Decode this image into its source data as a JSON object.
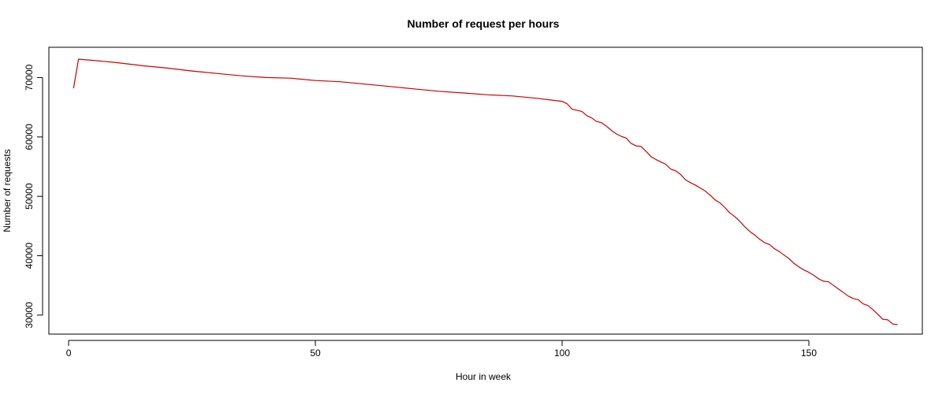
{
  "chart_data": {
    "type": "line",
    "title": "Number of request per hours",
    "xlabel": "Hour in week",
    "ylabel": "Number of requests",
    "xlim": [
      -4,
      173
    ],
    "ylim": [
      26800,
      75100
    ],
    "x_ticks": [
      0,
      50,
      100,
      150
    ],
    "y_ticks": [
      30000,
      40000,
      50000,
      60000,
      70000
    ],
    "grid": false,
    "legend": "none",
    "series": [
      {
        "color": "#cc0000",
        "x": [
          1,
          2,
          5,
          10,
          15,
          20,
          25,
          30,
          35,
          40,
          45,
          50,
          55,
          60,
          65,
          70,
          75,
          80,
          85,
          90,
          95,
          98,
          100,
          101,
          102,
          103,
          104,
          105,
          106,
          107,
          108,
          109,
          110,
          111,
          112,
          113,
          114,
          115,
          116,
          117,
          118,
          119,
          120,
          121,
          122,
          123,
          124,
          125,
          126,
          127,
          128,
          129,
          130,
          131,
          132,
          133,
          134,
          135,
          136,
          137,
          138,
          139,
          140,
          141,
          142,
          143,
          144,
          145,
          146,
          147,
          148,
          149,
          150,
          151,
          152,
          153,
          154,
          155,
          156,
          157,
          158,
          159,
          160,
          161,
          162,
          163,
          164,
          165,
          166,
          167,
          168
        ],
        "y": [
          68200,
          73100,
          72900,
          72500,
          72000,
          71600,
          71100,
          70700,
          70300,
          70000,
          69900,
          69500,
          69300,
          68900,
          68500,
          68100,
          67700,
          67400,
          67100,
          66900,
          66500,
          66200,
          66000,
          65600,
          64700,
          64500,
          64300,
          63600,
          63200,
          62600,
          62400,
          61800,
          61100,
          60500,
          60100,
          59800,
          58900,
          58500,
          58400,
          57600,
          56700,
          56200,
          55800,
          55400,
          54600,
          54300,
          53700,
          52800,
          52300,
          51900,
          51400,
          50900,
          50200,
          49400,
          48900,
          48100,
          47200,
          46600,
          45800,
          44900,
          44100,
          43500,
          42800,
          42200,
          41900,
          41200,
          40700,
          40100,
          39500,
          38700,
          38100,
          37600,
          37200,
          36700,
          36100,
          35700,
          35600,
          35000,
          34400,
          33800,
          33200,
          32800,
          32600,
          31900,
          31600,
          30900,
          30100,
          29300,
          29200,
          28500,
          28400
        ]
      }
    ]
  }
}
